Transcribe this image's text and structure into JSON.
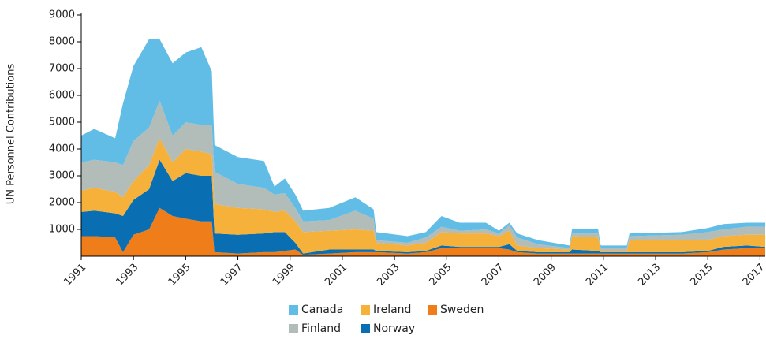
{
  "chart_data": {
    "type": "stacked_area",
    "y_label": "UN Personnel Contributions",
    "x": [
      1991,
      1991.5,
      1992.3,
      1992.6,
      1993,
      1993.6,
      1994,
      1994.5,
      1995,
      1995.6,
      1996,
      1996.1,
      1997,
      1998,
      1998.4,
      1998.8,
      1999.2,
      1999.5,
      2000.5,
      2001.5,
      2002.2,
      2002.3,
      2003.5,
      2004.2,
      2004.8,
      2005.5,
      2006.5,
      2007,
      2007.4,
      2007.7,
      2008.5,
      2009.7,
      2009.8,
      2010.8,
      2010.9,
      2011.9,
      2012,
      2014,
      2015,
      2015.6,
      2016.5,
      2017.2
    ],
    "series": [
      {
        "name": "Sweden",
        "color": "#ee7d1a",
        "values": [
          750,
          750,
          700,
          150,
          800,
          1000,
          1800,
          1500,
          1400,
          1300,
          1300,
          150,
          100,
          150,
          150,
          200,
          250,
          50,
          100,
          150,
          150,
          150,
          100,
          150,
          300,
          300,
          300,
          300,
          250,
          150,
          100,
          100,
          100,
          100,
          100,
          100,
          100,
          100,
          150,
          250,
          300,
          300
        ]
      },
      {
        "name": "Norway",
        "color": "#0a6fb2",
        "values": [
          900,
          950,
          900,
          1350,
          1300,
          1500,
          1800,
          1300,
          1700,
          1700,
          1700,
          700,
          700,
          700,
          750,
          700,
          250,
          50,
          150,
          100,
          100,
          50,
          50,
          50,
          100,
          50,
          50,
          50,
          200,
          50,
          50,
          50,
          150,
          100,
          50,
          50,
          50,
          50,
          50,
          100,
          100,
          50
        ]
      },
      {
        "name": "Ireland",
        "color": "#f6b13b",
        "values": [
          800,
          850,
          800,
          700,
          700,
          900,
          800,
          700,
          900,
          900,
          800,
          1100,
          1000,
          900,
          750,
          800,
          800,
          800,
          700,
          750,
          700,
          300,
          250,
          300,
          500,
          500,
          500,
          400,
          500,
          200,
          150,
          100,
          500,
          500,
          50,
          50,
          450,
          450,
          400,
          400,
          400,
          450
        ]
      },
      {
        "name": "Finland",
        "color": "#b2bcb8",
        "values": [
          1050,
          1050,
          1100,
          1200,
          1500,
          1400,
          1400,
          1000,
          1000,
          1000,
          1100,
          1200,
          900,
          800,
          650,
          650,
          500,
          400,
          400,
          700,
          450,
          100,
          100,
          200,
          200,
          100,
          150,
          100,
          200,
          300,
          150,
          50,
          100,
          150,
          100,
          100,
          150,
          200,
          300,
          250,
          300,
          300
        ]
      },
      {
        "name": "Canada",
        "color": "#62bde6",
        "values": [
          1000,
          1150,
          900,
          2300,
          2800,
          3300,
          2300,
          2700,
          2600,
          2900,
          2000,
          1000,
          1000,
          1000,
          300,
          550,
          500,
          400,
          450,
          500,
          350,
          300,
          250,
          200,
          400,
          300,
          250,
          100,
          100,
          150,
          150,
          100,
          150,
          150,
          100,
          100,
          100,
          100,
          150,
          200,
          150,
          150
        ]
      }
    ],
    "xlim": [
      1991,
      2017.2
    ],
    "xticks": [
      1991,
      1993,
      1995,
      1997,
      1999,
      2001,
      2003,
      2005,
      2007,
      2009,
      2011,
      2013,
      2015,
      2017
    ],
    "ylim": [
      0,
      9000
    ],
    "yticks": [
      1000,
      2000,
      3000,
      4000,
      5000,
      6000,
      7000,
      8000,
      9000
    ],
    "legend_order": [
      "Canada",
      "Finland",
      "Ireland",
      "Norway",
      "Sweden"
    ]
  }
}
